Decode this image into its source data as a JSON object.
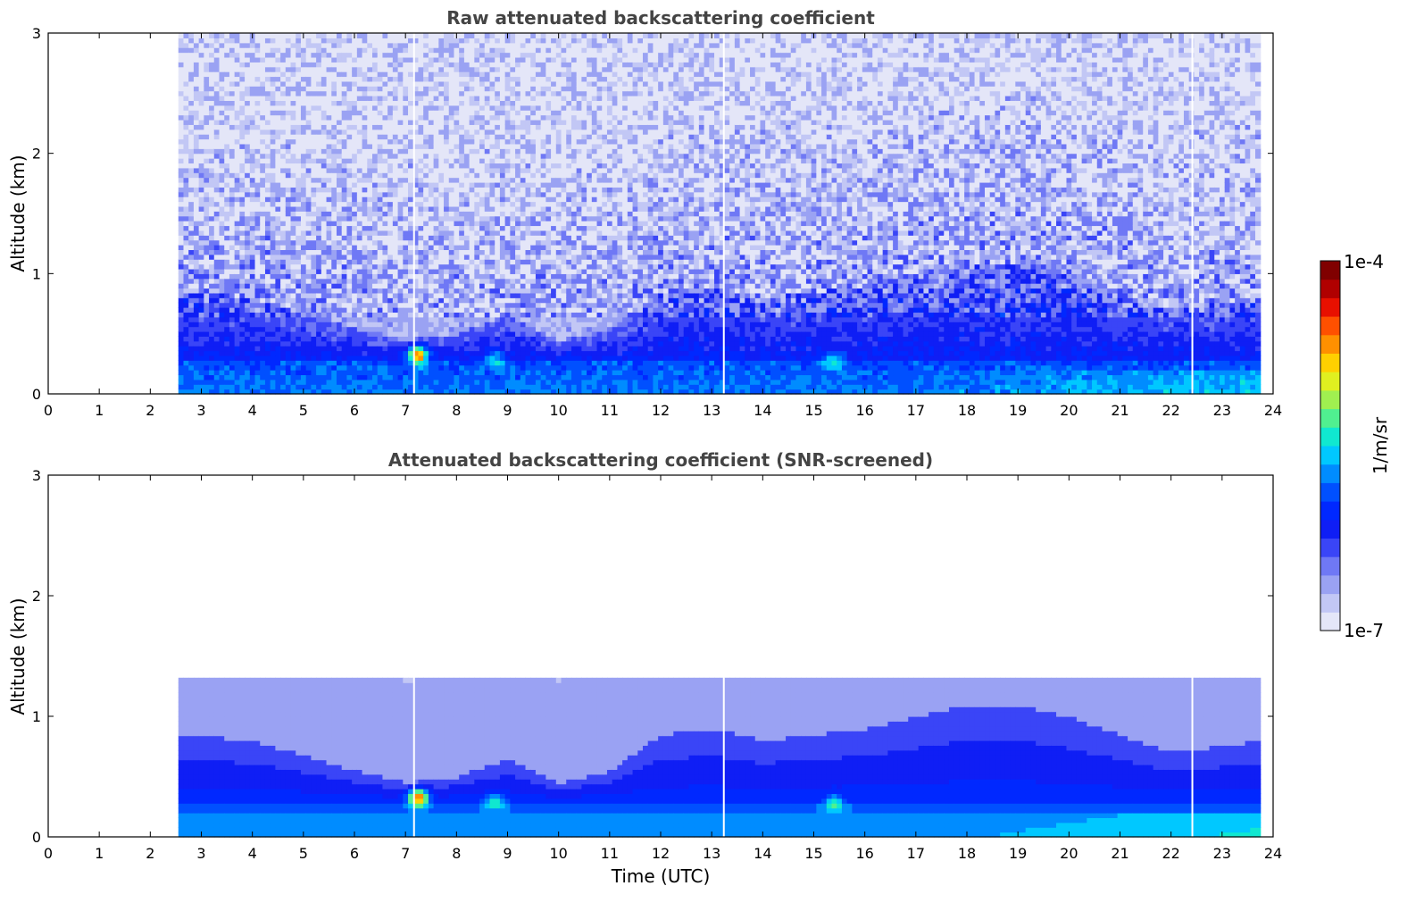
{
  "chart_data": [
    {
      "type": "heatmap",
      "title": "Raw attenuated backscattering coefficient",
      "xlabel": "",
      "ylabel": "Altitude (km)",
      "xlim": [
        0,
        24
      ],
      "ylim": [
        0,
        3
      ],
      "x_ticks": [
        "0",
        "1",
        "2",
        "3",
        "4",
        "5",
        "6",
        "7",
        "8",
        "9",
        "10",
        "11",
        "12",
        "13",
        "14",
        "15",
        "16",
        "17",
        "18",
        "19",
        "20",
        "21",
        "22",
        "23",
        "24"
      ],
      "y_ticks": [
        "0",
        "1",
        "2",
        "3"
      ],
      "data_time_range": [
        2.55,
        23.75
      ],
      "data_gaps_utc": [
        7.15,
        13.22,
        22.4
      ],
      "features": {
        "boundary_layer_top_km": [
          [
            2.55,
            0.85
          ],
          [
            4,
            0.8
          ],
          [
            6,
            0.55
          ],
          [
            7,
            0.45
          ],
          [
            8,
            0.5
          ],
          [
            9,
            0.65
          ],
          [
            10,
            0.45
          ],
          [
            11,
            0.55
          ],
          [
            12,
            0.85
          ],
          [
            13,
            0.9
          ],
          [
            14,
            0.8
          ],
          [
            15,
            0.85
          ],
          [
            16,
            0.9
          ],
          [
            17,
            1.0
          ],
          [
            18,
            1.1
          ],
          [
            19,
            1.1
          ],
          [
            20,
            1.0
          ],
          [
            21,
            0.85
          ],
          [
            22,
            0.7
          ],
          [
            23,
            0.75
          ],
          [
            23.75,
            0.8
          ]
        ],
        "hotspots": [
          {
            "time": 7.25,
            "alt_km": 0.33,
            "level": "high"
          },
          {
            "time": 8.75,
            "alt_km": 0.3,
            "level": "medium"
          },
          {
            "time": 15.4,
            "alt_km": 0.28,
            "level": "medium"
          }
        ]
      },
      "screened": false
    },
    {
      "type": "heatmap",
      "title": "Attenuated backscattering coefficient (SNR-screened)",
      "xlabel": "Time (UTC)",
      "ylabel": "Altitude (km)",
      "xlim": [
        0,
        24
      ],
      "ylim": [
        0,
        3
      ],
      "x_ticks": [
        "0",
        "1",
        "2",
        "3",
        "4",
        "5",
        "6",
        "7",
        "8",
        "9",
        "10",
        "11",
        "12",
        "13",
        "14",
        "15",
        "16",
        "17",
        "18",
        "19",
        "20",
        "21",
        "22",
        "23",
        "24"
      ],
      "y_ticks": [
        "0",
        "1",
        "2",
        "3"
      ],
      "data_time_range": [
        2.55,
        23.75
      ],
      "data_gaps_utc": [
        7.15,
        13.22,
        22.4
      ],
      "screened_top_km": 1.3,
      "screened": true
    }
  ],
  "colorbar": {
    "label": "1/m/sr",
    "max_label": "1e-4",
    "min_label": "1e-7",
    "colors": [
      "#e4e6f8",
      "#c2c7f5",
      "#9aa2f3",
      "#6f78f5",
      "#3a45f7",
      "#0f1ef5",
      "#0028ff",
      "#0050ff",
      "#008cff",
      "#00c8ff",
      "#10e8d0",
      "#50f090",
      "#a0f050",
      "#e0f020",
      "#ffd000",
      "#ff9000",
      "#ff5000",
      "#e81000",
      "#b00000",
      "#800000"
    ]
  }
}
